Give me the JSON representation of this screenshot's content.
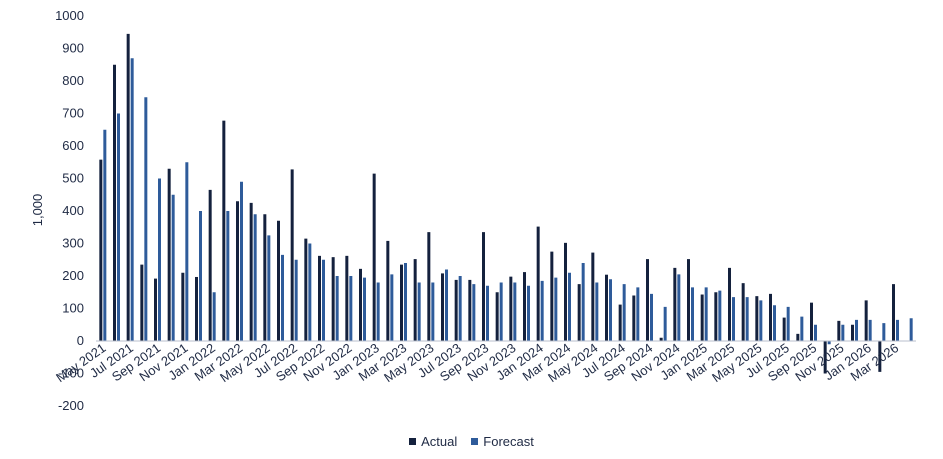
{
  "chart_data": {
    "type": "bar",
    "ylabel": "1,000",
    "ylim": [
      -200,
      1000
    ],
    "yticks": [
      -200,
      -100,
      0,
      100,
      200,
      300,
      400,
      500,
      600,
      700,
      800,
      900,
      1000
    ],
    "x_tick_labels": [
      "May 2021",
      "Jul 2021",
      "Sep 2021",
      "Nov 2021",
      "Jan 2022",
      "Mar 2022",
      "May 2022",
      "Jul 2022",
      "Sep 2022",
      "Nov 2022",
      "Jan 2023",
      "Mar 2023",
      "May 2023",
      "Jul 2023",
      "Sep 2023",
      "Nov 2023",
      "Jan 2024",
      "Mar 2024",
      "May 2024",
      "Jul 2024",
      "Sep 2024",
      "Nov 2024",
      "Jan 2025",
      "Mar 2025",
      "May 2025",
      "Jul 2025",
      "Sep 2025",
      "Nov 2025",
      "Jan 2026",
      "Mar 2026"
    ],
    "categories": [
      "May 2021",
      "Jun 2021",
      "Jul 2021",
      "Aug 2021",
      "Sep 2021",
      "Oct 2021",
      "Nov 2021",
      "Dec 2021",
      "Jan 2022",
      "Feb 2022",
      "Mar 2022",
      "Apr 2022",
      "May 2022",
      "Jun 2022",
      "Jul 2022",
      "Aug 2022",
      "Sep 2022",
      "Oct 2022",
      "Nov 2022",
      "Dec 2022",
      "Jan 2023",
      "Feb 2023",
      "Mar 2023",
      "Apr 2023",
      "May 2023",
      "Jun 2023",
      "Jul 2023",
      "Aug 2023",
      "Sep 2023",
      "Oct 2023",
      "Nov 2023",
      "Dec 2023",
      "Jan 2024",
      "Feb 2024",
      "Mar 2024",
      "Apr 2024",
      "May 2024",
      "Jun 2024",
      "Jul 2024",
      "Aug 2024",
      "Sep 2024",
      "Oct 2024",
      "Nov 2024",
      "Dec 2024",
      "Jan 2025",
      "Feb 2025",
      "Mar 2025",
      "Apr 2025",
      "May 2025",
      "Jun 2025",
      "Jul 2025",
      "Aug 2025",
      "Sep 2025",
      "Oct 2025",
      "Nov 2025",
      "Dec 2025",
      "Jan 2026",
      "Feb 2026",
      "Mar 2026",
      "Apr 2026"
    ],
    "series": [
      {
        "name": "Actual",
        "color": "#14213d",
        "values": [
          558,
          850,
          945,
          235,
          192,
          530,
          210,
          197,
          465,
          678,
          430,
          425,
          390,
          370,
          528,
          315,
          262,
          258,
          262,
          222,
          515,
          308,
          235,
          252,
          335,
          208,
          188,
          188,
          335,
          150,
          198,
          212,
          352,
          275,
          302,
          175,
          272,
          204,
          112,
          140,
          252,
          10,
          225,
          252,
          143,
          150,
          225,
          178,
          138,
          145,
          72,
          22,
          118,
          -100,
          62,
          50,
          125,
          -95,
          175,
          null
        ]
      },
      {
        "name": "Forecast",
        "color": "#2e5b9a",
        "values": [
          650,
          700,
          870,
          750,
          500,
          450,
          550,
          400,
          150,
          400,
          490,
          390,
          325,
          265,
          250,
          300,
          250,
          200,
          200,
          195,
          180,
          205,
          240,
          180,
          180,
          220,
          200,
          175,
          170,
          180,
          180,
          170,
          185,
          195,
          210,
          240,
          180,
          190,
          175,
          165,
          145,
          105,
          205,
          165,
          165,
          155,
          135,
          135,
          125,
          110,
          105,
          75,
          50,
          -10,
          50,
          65,
          65,
          55,
          65,
          70
        ]
      }
    ],
    "legend": [
      "Actual",
      "Forecast"
    ],
    "legend_position": "bottom",
    "grid": false
  }
}
